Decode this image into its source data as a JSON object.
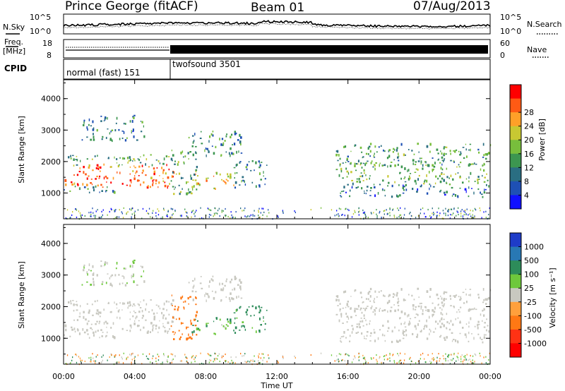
{
  "header": {
    "station": "Prince George (fitACF)",
    "beam": "Beam 01",
    "date": "07/Aug/2013"
  },
  "noise_panel": {
    "left_label": "N.Sky",
    "right_label": "N.Search",
    "left_ticks": [
      "10^5",
      "10^0"
    ],
    "right_ticks": [
      "10^5",
      "10^0"
    ]
  },
  "freq_panel": {
    "left_label_1": "Freq.",
    "left_label_2": "[MHz]",
    "right_label": "Nave",
    "left_ticks": [
      "18",
      "8"
    ],
    "right_ticks": [
      "60",
      "0"
    ]
  },
  "cpid_panel": {
    "label": "CPID",
    "modes": [
      {
        "name": "normal (fast) 151",
        "start_hour": 0
      },
      {
        "name": "twofsound 3501",
        "start_hour": 6
      }
    ]
  },
  "time_axis": {
    "title": "Time UT",
    "ticks": [
      "00:00",
      "04:00",
      "08:00",
      "12:00",
      "16:00",
      "20:00",
      "00:00"
    ],
    "tick_hours": [
      0,
      4,
      8,
      12,
      16,
      20,
      24
    ]
  },
  "power_panel": {
    "ylabel": "Slant Range [km]",
    "yticks": [
      "1000",
      "2000",
      "3000",
      "4000"
    ],
    "ytick_values": [
      1000,
      2000,
      3000,
      4000
    ],
    "yrange": [
      180,
      4600
    ],
    "colorbar_title": "Power [dB]",
    "colorbar_ticks": [
      "4",
      "8",
      "12",
      "16",
      "20",
      "24",
      "28"
    ],
    "colors": [
      "#1010ff",
      "#1e50b4",
      "#2a6e82",
      "#3c9650",
      "#78be3c",
      "#c8c832",
      "#ffa028",
      "#ff5a14",
      "#ff0000"
    ]
  },
  "velocity_panel": {
    "ylabel": "Slant Range [km]",
    "yticks": [
      "1000",
      "2000",
      "3000",
      "4000"
    ],
    "ytick_values": [
      1000,
      2000,
      3000,
      4000
    ],
    "yrange": [
      180,
      4600
    ],
    "colorbar_title": "Velocity [m s⁻¹]",
    "colorbar_ticks": [
      "1000",
      "500",
      "100",
      "25",
      "-25",
      "-100",
      "-500",
      "-1000"
    ],
    "colors": [
      "#1e3cc8",
      "#2878b4",
      "#2d8c5a",
      "#6ec83c",
      "#c8c8c0",
      "#ffa03c",
      "#ff7814",
      "#ff3214",
      "#ff0000"
    ]
  },
  "chart_data": {
    "type": "heatmap",
    "title": "Prince George (fitACF)   Beam 01   07/Aug/2013",
    "xlabel": "Time UT",
    "ylabel": "Slant Range [km]",
    "x_range_hours": [
      0,
      24
    ],
    "y_range_km": [
      180,
      4600
    ],
    "series": [
      {
        "name": "Power [dB]",
        "colorbar_range": [
          0,
          32
        ]
      },
      {
        "name": "Velocity [m s⁻¹]",
        "colorbar_levels": [
          -1000,
          -500,
          -100,
          -25,
          25,
          100,
          500,
          1000
        ]
      }
    ],
    "scatter_bands": [
      {
        "t0": 0.0,
        "t1": 6.3,
        "r0": 1200,
        "r1": 1950,
        "power_db": 26,
        "velocity": 0
      },
      {
        "t0": 0.0,
        "t1": 6.3,
        "r0": 1900,
        "r1": 2250,
        "power_db": 13,
        "velocity": 0
      },
      {
        "t0": 0.0,
        "t1": 3.0,
        "r0": 980,
        "r1": 1250,
        "power_db": 11,
        "velocity": 0
      },
      {
        "t0": 1.0,
        "t1": 4.5,
        "r0": 2700,
        "r1": 3500,
        "power_db": 9,
        "velocity": 20
      },
      {
        "t0": 6.0,
        "t1": 7.5,
        "r0": 1000,
        "r1": 2400,
        "power_db": 14,
        "velocity": -300
      },
      {
        "t0": 7.2,
        "t1": 9.6,
        "r0": 1150,
        "r1": 1700,
        "power_db": 22,
        "velocity": 80
      },
      {
        "t0": 9.5,
        "t1": 11.5,
        "r0": 1200,
        "r1": 2050,
        "power_db": 10,
        "velocity": 150
      },
      {
        "t0": 7.0,
        "t1": 10.0,
        "r0": 2200,
        "r1": 3000,
        "power_db": 11,
        "velocity": 0
      },
      {
        "t0": 15.3,
        "t1": 24.0,
        "r0": 1300,
        "r1": 2000,
        "power_db": 15,
        "velocity": 0
      },
      {
        "t0": 15.3,
        "t1": 24.0,
        "r0": 1900,
        "r1": 2600,
        "power_db": 12,
        "velocity": 0
      },
      {
        "t0": 15.3,
        "t1": 24.0,
        "r0": 900,
        "r1": 1300,
        "power_db": 8,
        "velocity": 0
      }
    ]
  }
}
